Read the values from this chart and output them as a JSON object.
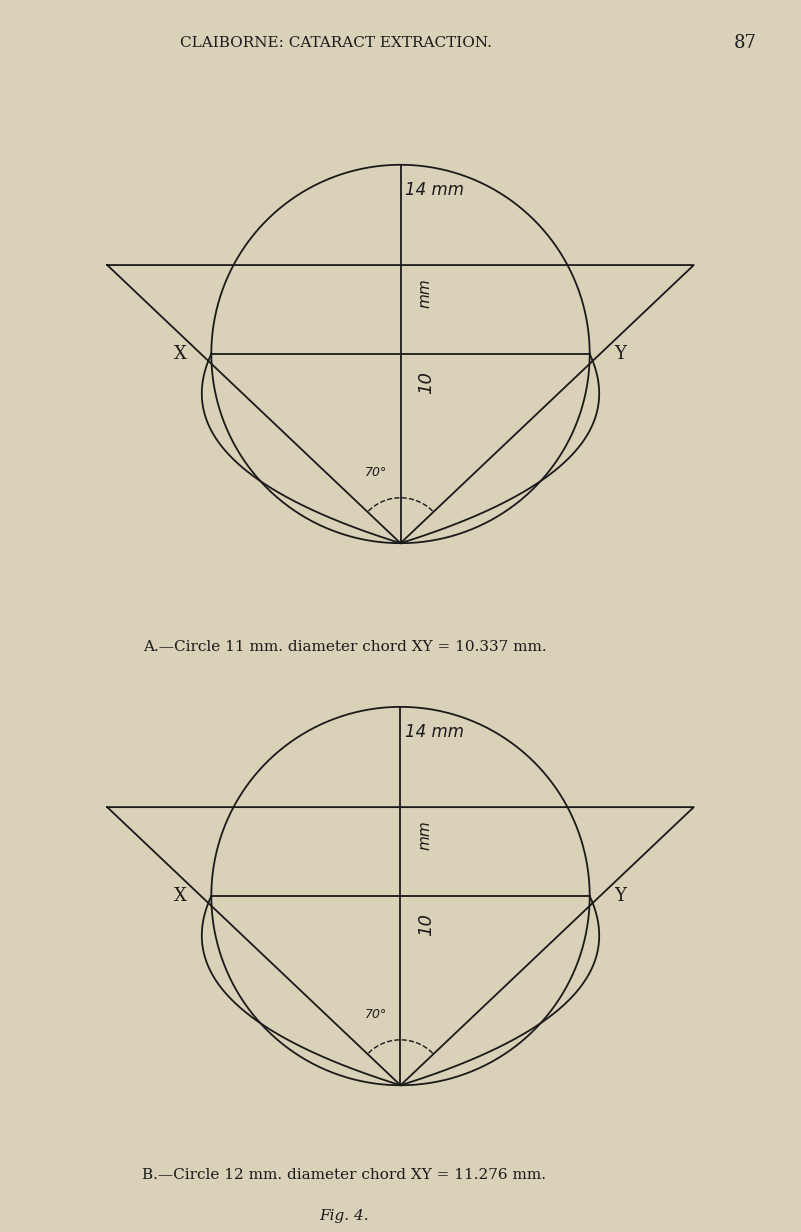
{
  "bg_color": "#d9d1b8",
  "line_color": "#1a1a1a",
  "header_text": "CLAIBORNE: CATARACT EXTRACTION.",
  "header_page": "87",
  "fig_caption": "Fig. 4.",
  "diagrams": [
    {
      "caption": "A.—Circle 11 mm. diameter chord XY = 10.337 mm.",
      "label_14mm": "14 mm",
      "label_10mm": "10",
      "label_mm": "mm",
      "label_angle": "70°"
    },
    {
      "caption": "B.—Circle 12 mm. diameter chord XY = 11.276 mm.",
      "label_14mm": "14 mm",
      "label_10mm": "10",
      "label_mm": "mm",
      "label_angle": "70°"
    }
  ]
}
